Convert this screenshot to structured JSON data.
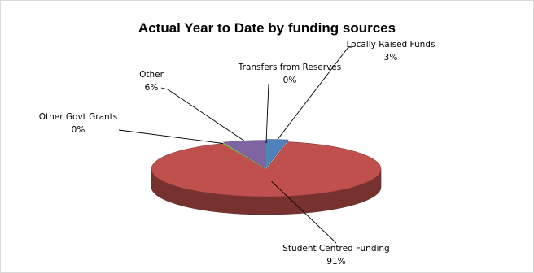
{
  "chart_data": {
    "type": "pie",
    "title": "Actual Year to Date by funding sources",
    "slices": [
      {
        "name": "Locally Raised Funds",
        "percent_label": "3%",
        "value": 3,
        "color": "#4f81bd"
      },
      {
        "name": "Student Centred Funding",
        "percent_label": "91%",
        "value": 91,
        "color": "#c0504d"
      },
      {
        "name": "Other Govt Grants",
        "percent_label": "0%",
        "value": 0.3,
        "color": "#9bbb59"
      },
      {
        "name": "Other",
        "percent_label": "6%",
        "value": 6,
        "color": "#8064a2"
      },
      {
        "name": "Transfers from Reserves",
        "percent_label": "0%",
        "value": 0,
        "color": "#4bacc6"
      }
    ],
    "legend": "none",
    "style": "3d-exploded-pie"
  }
}
